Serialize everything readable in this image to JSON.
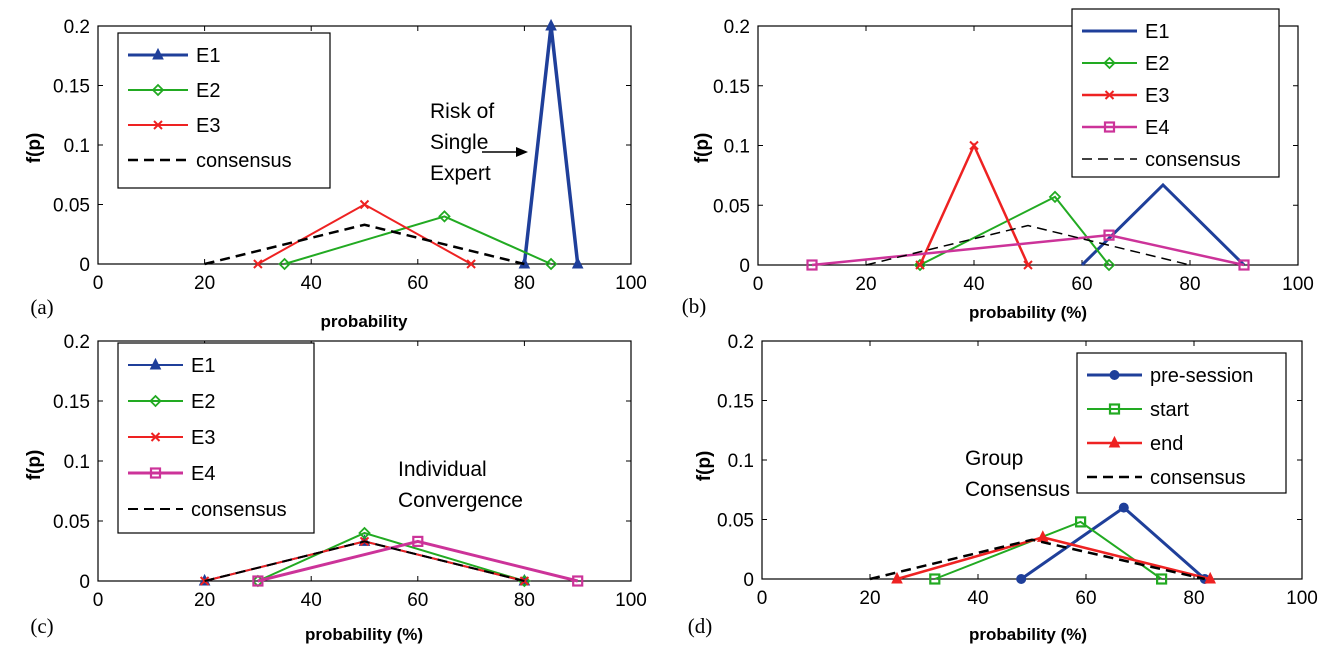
{
  "chart_data": [
    {
      "type": "line",
      "panel_label": "(a)",
      "xlabel": "probability",
      "ylabel": "f(p)",
      "xlim": [
        0,
        100
      ],
      "ylim": [
        0,
        0.2
      ],
      "xticks": [
        "0",
        "20",
        "40",
        "60",
        "80",
        "100"
      ],
      "yticks": [
        "0",
        "0.05",
        "0.1",
        "0.15",
        "0.2"
      ],
      "legend_position": "top-left",
      "annotation": [
        "Risk of",
        "Single",
        "Expert"
      ],
      "series": [
        {
          "name": "E1",
          "color": "#1f3f9a",
          "marker": "triangle",
          "width": 3.5,
          "dashed": false,
          "x": [
            80,
            85,
            90
          ],
          "y": [
            0,
            0.2,
            0
          ]
        },
        {
          "name": "E2",
          "color": "#22aa22",
          "marker": "diamond",
          "width": 2,
          "dashed": false,
          "x": [
            35,
            65,
            85
          ],
          "y": [
            0,
            0.04,
            0
          ]
        },
        {
          "name": "E3",
          "color": "#ee2222",
          "marker": "x",
          "width": 2,
          "dashed": false,
          "x": [
            30,
            50,
            70
          ],
          "y": [
            0,
            0.05,
            0
          ]
        },
        {
          "name": "consensus",
          "color": "#000000",
          "marker": "none",
          "width": 2.5,
          "dashed": true,
          "x": [
            20,
            50,
            80
          ],
          "y": [
            0,
            0.033,
            0
          ]
        }
      ]
    },
    {
      "type": "line",
      "panel_label": "(b)",
      "xlabel": "probability (%)",
      "ylabel": "f(p)",
      "xlim": [
        0,
        100
      ],
      "ylim": [
        0,
        0.2
      ],
      "xticks": [
        "0",
        "20",
        "40",
        "60",
        "80",
        "100"
      ],
      "yticks": [
        "0",
        "0.05",
        "0.1",
        "0.15",
        "0.2"
      ],
      "legend_position": "top-right",
      "series": [
        {
          "name": "E1",
          "color": "#1f3f9a",
          "marker": "none",
          "width": 3,
          "dashed": false,
          "x": [
            60,
            75,
            90
          ],
          "y": [
            0,
            0.067,
            0
          ]
        },
        {
          "name": "E2",
          "color": "#22aa22",
          "marker": "diamond",
          "width": 2,
          "dashed": false,
          "x": [
            30,
            55,
            65
          ],
          "y": [
            0,
            0.057,
            0
          ]
        },
        {
          "name": "E3",
          "color": "#ee2222",
          "marker": "x",
          "width": 2.5,
          "dashed": false,
          "x": [
            30,
            40,
            50
          ],
          "y": [
            0,
            0.1,
            0
          ]
        },
        {
          "name": "E4",
          "color": "#cc3399",
          "marker": "square",
          "width": 2.5,
          "dashed": false,
          "x": [
            10,
            65,
            90
          ],
          "y": [
            0,
            0.025,
            0
          ]
        },
        {
          "name": "consensus",
          "color": "#000000",
          "marker": "none",
          "width": 1.5,
          "dashed": true,
          "x": [
            20,
            50,
            80
          ],
          "y": [
            0,
            0.033,
            0
          ]
        }
      ]
    },
    {
      "type": "line",
      "panel_label": "(c)",
      "xlabel": "probability (%)",
      "ylabel": "f(p)",
      "xlim": [
        0,
        100
      ],
      "ylim": [
        0,
        0.2
      ],
      "xticks": [
        "0",
        "20",
        "40",
        "60",
        "80",
        "100"
      ],
      "yticks": [
        "0",
        "0.05",
        "0.1",
        "0.15",
        "0.2"
      ],
      "legend_position": "top-left",
      "annotation": [
        "Individual",
        "Convergence"
      ],
      "series": [
        {
          "name": "E1",
          "color": "#1f3f9a",
          "marker": "triangle",
          "width": 2,
          "dashed": false,
          "x": [
            20,
            50,
            80
          ],
          "y": [
            0,
            0.033,
            0
          ]
        },
        {
          "name": "E2",
          "color": "#22aa22",
          "marker": "diamond",
          "width": 2,
          "dashed": false,
          "x": [
            30,
            50,
            80
          ],
          "y": [
            0,
            0.04,
            0
          ]
        },
        {
          "name": "E3",
          "color": "#ee2222",
          "marker": "x",
          "width": 2,
          "dashed": false,
          "x": [
            20,
            50,
            80
          ],
          "y": [
            0,
            0.033,
            0
          ]
        },
        {
          "name": "E4",
          "color": "#cc3399",
          "marker": "square",
          "width": 3,
          "dashed": false,
          "x": [
            30,
            60,
            90
          ],
          "y": [
            0,
            0.033,
            0
          ]
        },
        {
          "name": "consensus",
          "color": "#000000",
          "marker": "none",
          "width": 2,
          "dashed": true,
          "x": [
            20,
            50,
            80
          ],
          "y": [
            0,
            0.033,
            0
          ]
        }
      ]
    },
    {
      "type": "line",
      "panel_label": "(d)",
      "xlabel": "probability (%)",
      "ylabel": "f(p)",
      "xlim": [
        0,
        100
      ],
      "ylim": [
        0,
        0.2
      ],
      "xticks": [
        "0",
        "20",
        "40",
        "60",
        "80",
        "100"
      ],
      "yticks": [
        "0",
        "0.05",
        "0.1",
        "0.15",
        "0.2"
      ],
      "legend_position": "top-right",
      "annotation": [
        "Group",
        "Consensus"
      ],
      "series": [
        {
          "name": "pre-session",
          "color": "#1f3f9a",
          "marker": "circle",
          "width": 3,
          "dashed": false,
          "x": [
            48,
            67,
            82
          ],
          "y": [
            0,
            0.06,
            0
          ]
        },
        {
          "name": "start",
          "color": "#22aa22",
          "marker": "square",
          "width": 2,
          "dashed": false,
          "x": [
            32,
            59,
            74
          ],
          "y": [
            0,
            0.048,
            0
          ]
        },
        {
          "name": "end",
          "color": "#ee2222",
          "marker": "triangle",
          "width": 2.5,
          "dashed": false,
          "x": [
            25,
            52,
            83
          ],
          "y": [
            0,
            0.035,
            0
          ]
        },
        {
          "name": "consensus",
          "color": "#000000",
          "marker": "none",
          "width": 2.5,
          "dashed": true,
          "x": [
            20,
            50,
            82
          ],
          "y": [
            0,
            0.033,
            0
          ]
        }
      ]
    }
  ]
}
